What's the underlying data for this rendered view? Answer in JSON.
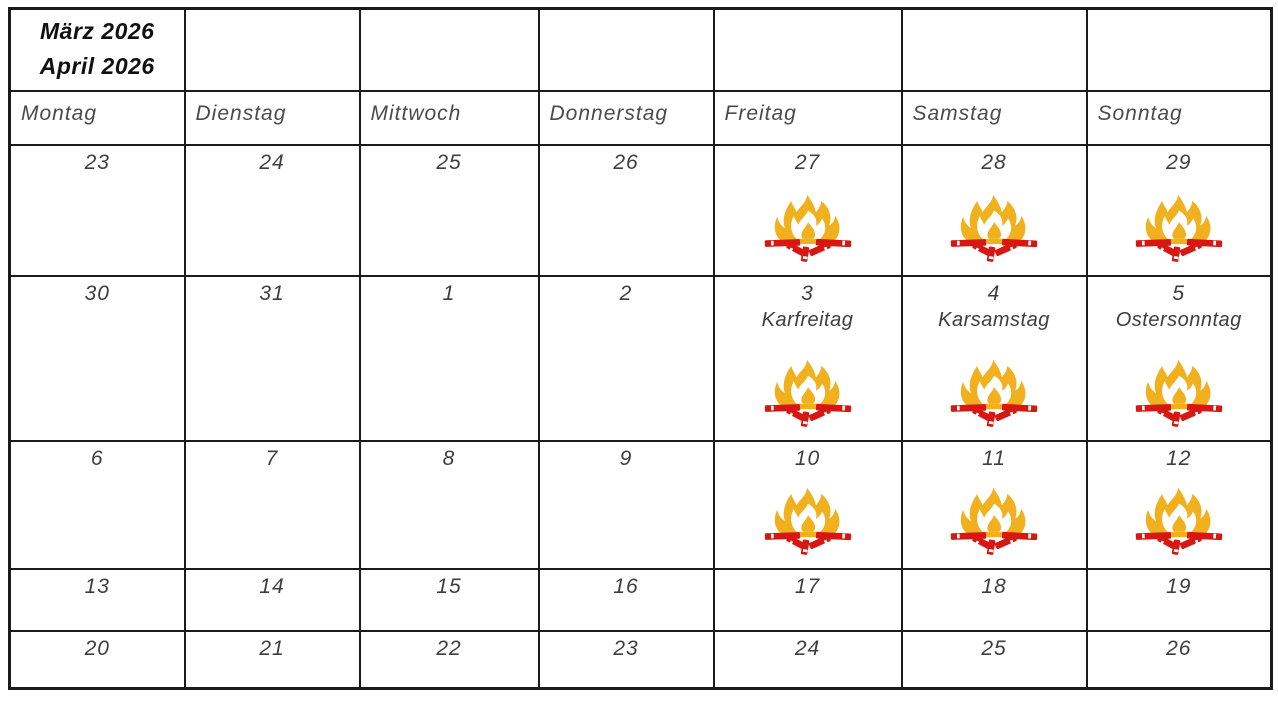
{
  "calendar": {
    "title_lines": [
      "März 2026",
      "April 2026"
    ],
    "day_headers": [
      "Montag",
      "Dienstag",
      "Mittwoch",
      "Donnerstag",
      "Freitag",
      "Samstag",
      "Sonntag"
    ],
    "weeks": [
      {
        "days": [
          {
            "number": "23"
          },
          {
            "number": "24"
          },
          {
            "number": "25"
          },
          {
            "number": "26"
          },
          {
            "number": "27",
            "fire": true
          },
          {
            "number": "28",
            "fire": true
          },
          {
            "number": "29",
            "fire": true
          }
        ]
      },
      {
        "days": [
          {
            "number": "30"
          },
          {
            "number": "31"
          },
          {
            "number": "1"
          },
          {
            "number": "2"
          },
          {
            "number": "3",
            "label": "Karfreitag",
            "fire": true
          },
          {
            "number": "4",
            "label": "Karsamstag",
            "fire": true
          },
          {
            "number": "5",
            "label": "Ostersonntag",
            "fire": true
          }
        ]
      },
      {
        "days": [
          {
            "number": "6"
          },
          {
            "number": "7"
          },
          {
            "number": "8"
          },
          {
            "number": "9"
          },
          {
            "number": "10",
            "fire": true
          },
          {
            "number": "11",
            "fire": true
          },
          {
            "number": "12",
            "fire": true
          }
        ]
      },
      {
        "days": [
          {
            "number": "13"
          },
          {
            "number": "14"
          },
          {
            "number": "15"
          },
          {
            "number": "16"
          },
          {
            "number": "17"
          },
          {
            "number": "18"
          },
          {
            "number": "19"
          }
        ]
      },
      {
        "days": [
          {
            "number": "20"
          },
          {
            "number": "21"
          },
          {
            "number": "22"
          },
          {
            "number": "23"
          },
          {
            "number": "24"
          },
          {
            "number": "25"
          },
          {
            "number": "26"
          }
        ]
      }
    ],
    "icons": {
      "campfire": "campfire-icon"
    },
    "colors": {
      "flame_yellow": "#F1B11E",
      "flame_inner": "#FFFFFF",
      "log_red": "#D61712",
      "grid": "#1B1B1B",
      "title_text": "#111111",
      "weekday_text": "#4B4B4B",
      "number_text": "#3E3E3E"
    }
  }
}
